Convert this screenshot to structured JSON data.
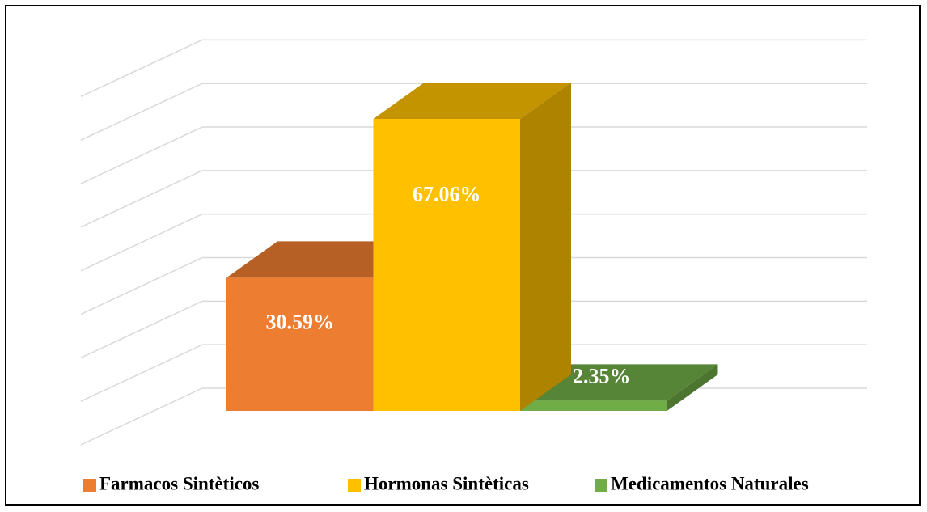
{
  "chart_data": {
    "type": "bar",
    "series": [
      {
        "name": "Farmacos Sintèticos",
        "color": "#ED7D31",
        "values": [
          30.59
        ],
        "value_labels": [
          "30.59%"
        ]
      },
      {
        "name": "Hormonas Sintèticas",
        "color": "#FFC000",
        "values": [
          67.06
        ],
        "value_labels": [
          "67.06%"
        ]
      },
      {
        "name": "Medicamentos Naturales",
        "color": "#70AD47",
        "values": [
          2.35
        ],
        "value_labels": [
          "2.35%"
        ]
      }
    ],
    "ylim": [
      0,
      80
    ],
    "yticks": [
      0,
      10,
      20,
      30,
      40,
      50,
      60,
      70,
      80
    ],
    "grid": true,
    "legend": "bottom"
  }
}
